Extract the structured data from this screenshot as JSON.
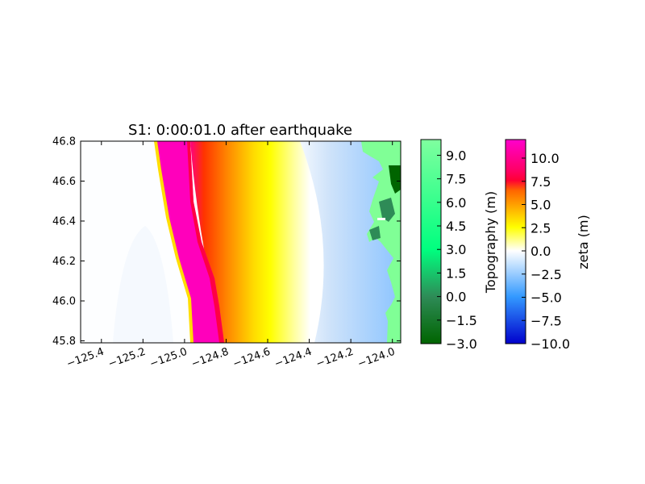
{
  "chart_data": {
    "type": "heatmap",
    "title": "S1: 0:00:01.0 after earthquake",
    "xlim": [
      -125.5,
      -123.96
    ],
    "ylim": [
      45.79,
      46.8
    ],
    "x_ticks": [
      "−125.4",
      "−125.2",
      "−125.0",
      "−124.8",
      "−124.6",
      "−124.4",
      "−124.2",
      "−124.0"
    ],
    "x_tick_values": [
      -125.4,
      -125.2,
      -125.0,
      -124.8,
      -124.6,
      -124.4,
      -124.2,
      -124.0
    ],
    "y_ticks": [
      "46.8",
      "46.6",
      "46.4",
      "46.2",
      "46.0",
      "45.8"
    ],
    "y_tick_values": [
      46.8,
      46.6,
      46.4,
      46.2,
      46.0,
      45.8
    ],
    "colorbars": [
      {
        "label": "Topography (m)",
        "range": [
          -3.0,
          10.0
        ],
        "ticks": [
          "9.0",
          "7.5",
          "6.0",
          "4.5",
          "3.0",
          "1.5",
          "0.0",
          "−1.5",
          "−3.0"
        ],
        "tick_values": [
          9.0,
          7.5,
          6.0,
          4.5,
          3.0,
          1.5,
          0.0,
          -1.5,
          -3.0
        ],
        "colors": [
          "#006400",
          "#2e8b57",
          "#00ff7f",
          "#7fff9f"
        ]
      },
      {
        "label": "zeta (m)",
        "range": [
          -10.0,
          12.0
        ],
        "ticks": [
          "10.0",
          "7.5",
          "5.0",
          "2.5",
          "0.0",
          "−2.5",
          "−5.0",
          "−7.5",
          "−10.0"
        ],
        "tick_values": [
          10.0,
          7.5,
          5.0,
          2.5,
          0.0,
          -2.5,
          -5.0,
          -7.5,
          -10.0
        ],
        "colors": [
          "#0000cc",
          "#3399ff",
          "#ffffff",
          "#ffff00",
          "#ff6600",
          "#ff0066",
          "#ff00cc"
        ]
      }
    ],
    "grid": false
  }
}
